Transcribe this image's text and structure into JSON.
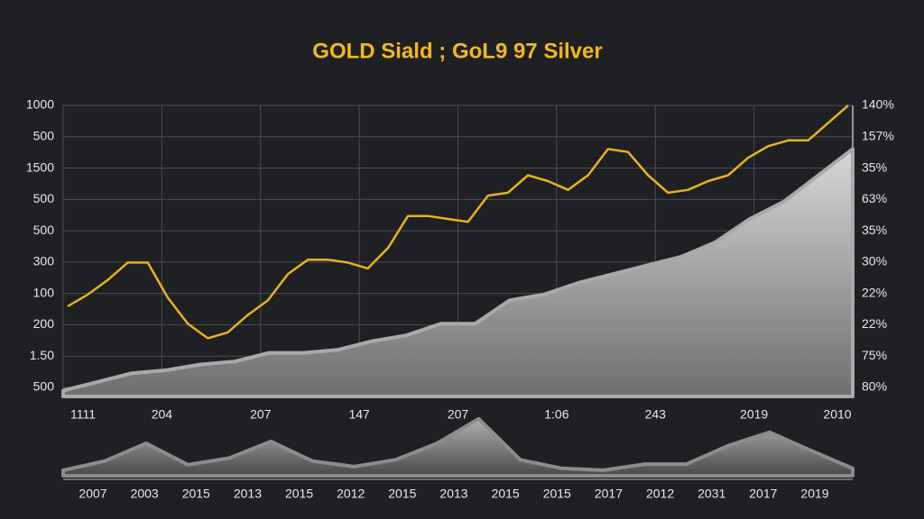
{
  "chart_data": [
    {
      "type": "line",
      "title": "GOLD Siald ; GoL9 97 Silver",
      "y_labels": [
        "1000",
        "500",
        "1500",
        "500",
        "500",
        "300",
        "100",
        "200",
        "1.50",
        "500"
      ],
      "y2_labels": [
        "140%",
        "157%",
        "35%",
        "63%",
        "35%",
        "30%",
        "22%",
        "22%",
        "75%",
        "80%"
      ],
      "x_labels": [
        "1111",
        "204",
        "207",
        "147",
        "207",
        "1:06",
        "243",
        "2019",
        "2010"
      ],
      "ylim": [
        0,
        100
      ],
      "series": [
        {
          "type": "line",
          "color": "#e8b21c",
          "values": [
            31,
            35,
            40,
            46,
            46,
            34,
            25,
            20,
            22,
            28,
            33,
            42,
            47,
            47,
            46,
            44,
            51,
            62,
            62,
            61,
            60,
            69,
            70,
            76,
            74,
            71,
            76,
            85,
            84,
            76,
            70,
            71,
            74,
            76,
            82,
            86,
            88,
            88,
            94,
            100
          ]
        },
        {
          "type": "area",
          "color": "#a9a9a9",
          "values": [
            2,
            5,
            8,
            9,
            11,
            12,
            15,
            15,
            16,
            19,
            21,
            25,
            25,
            33,
            35,
            39,
            42,
            45,
            48,
            53,
            61,
            67,
            76,
            85
          ]
        }
      ]
    },
    {
      "type": "area",
      "x_labels": [
        "2007",
        "2003",
        "2015",
        "2013",
        "2015",
        "2012",
        "2015",
        "2013",
        "2015",
        "2015",
        "2017",
        "2012",
        "2031",
        "2017",
        "2019"
      ],
      "ylim": [
        0,
        100
      ],
      "series": [
        {
          "type": "area",
          "color": "#8c8c8c",
          "values": [
            9,
            24,
            53,
            18,
            29,
            56,
            24,
            15,
            26,
            53,
            93,
            26,
            12,
            9,
            19,
            19,
            49,
            71,
            41,
            12
          ]
        }
      ]
    }
  ]
}
